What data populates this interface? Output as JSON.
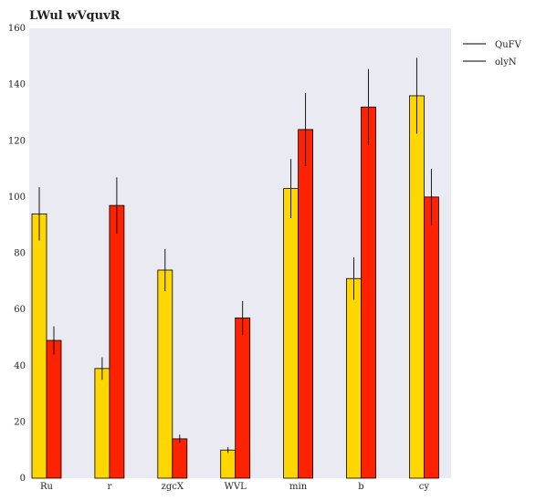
{
  "chart_data": {
    "type": "bar",
    "title": "LWul wVquvR",
    "xlabel": "",
    "ylabel": "",
    "categories": [
      "Ru",
      "r",
      "zgcX",
      "WVL",
      "min",
      "b",
      "cy"
    ],
    "ylim": [
      0,
      160
    ],
    "yticks": [
      0,
      20,
      40,
      60,
      80,
      100,
      120,
      140,
      160
    ],
    "grid": false,
    "legend_position": "top-right",
    "series": [
      {
        "name": "QuFV",
        "color": "#FFD700",
        "values": [
          94,
          39,
          74,
          10,
          103,
          71,
          136
        ],
        "errors": [
          9.5,
          4,
          7.5,
          1,
          10.5,
          7.5,
          13.5
        ]
      },
      {
        "name": "olyN",
        "color": "#FF2200",
        "values": [
          49,
          97,
          14,
          57,
          124,
          132,
          100
        ],
        "errors": [
          5,
          10,
          1.5,
          6,
          13,
          13.5,
          10
        ]
      }
    ],
    "plot_background": "#EAEAF2",
    "error_color": "#000000"
  }
}
